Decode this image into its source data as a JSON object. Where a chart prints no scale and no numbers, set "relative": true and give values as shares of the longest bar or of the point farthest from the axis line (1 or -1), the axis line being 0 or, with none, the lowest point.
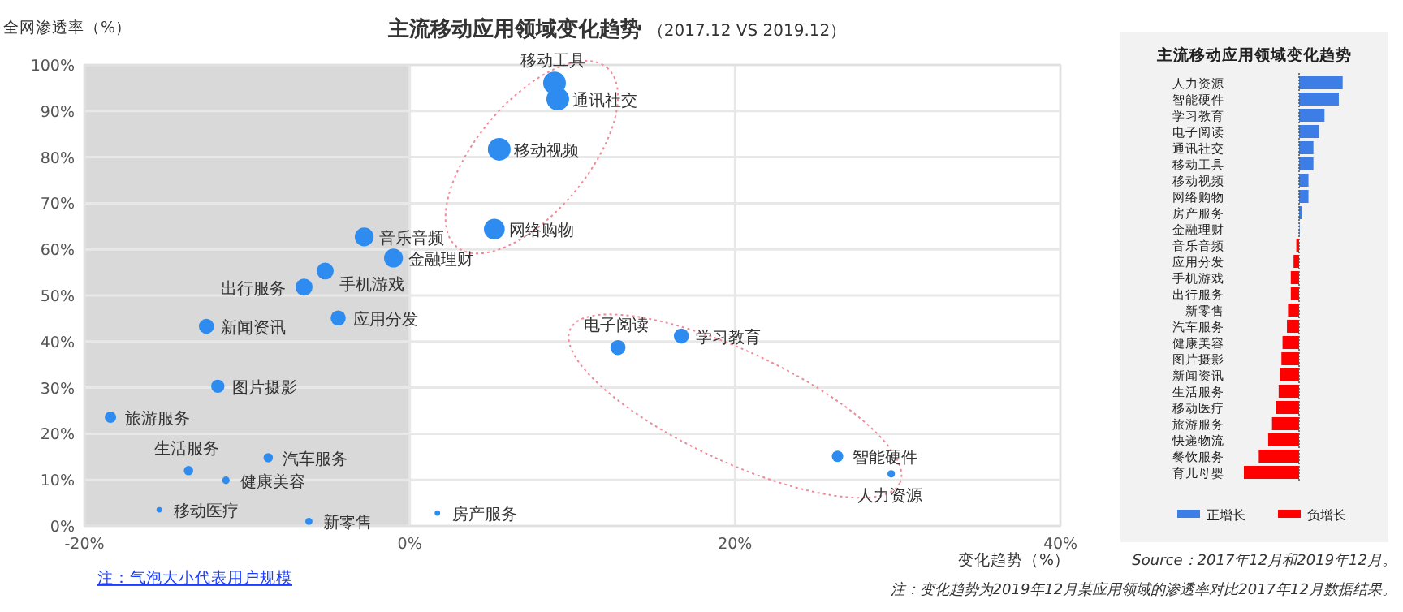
{
  "chart_data": [
    {
      "type": "bubble",
      "title": "主流移动应用领域变化趋势",
      "subtitle": "（2017.12 VS 2019.12）",
      "xlabel": "变化趋势（%）",
      "ylabel": "全网渗透率（%）",
      "xlim": [
        -20,
        40
      ],
      "xticks": [
        {
          "value": -20,
          "label": "-20%"
        },
        {
          "value": 0,
          "label": "0%"
        },
        {
          "value": 20,
          "label": "20%"
        },
        {
          "value": 40,
          "label": "40%"
        }
      ],
      "ylim": [
        0,
        100
      ],
      "yticks": [
        {
          "value": 0,
          "label": "0%"
        },
        {
          "value": 10,
          "label": "10%"
        },
        {
          "value": 20,
          "label": "20%"
        },
        {
          "value": 30,
          "label": "30%"
        },
        {
          "value": 40,
          "label": "40%"
        },
        {
          "value": 50,
          "label": "50%"
        },
        {
          "value": 60,
          "label": "60%"
        },
        {
          "value": 70,
          "label": "70%"
        },
        {
          "value": 80,
          "label": "80%"
        },
        {
          "value": 90,
          "label": "90%"
        },
        {
          "value": 100,
          "label": "100%"
        }
      ],
      "grid": true,
      "bands": [
        {
          "axis": "x",
          "from": -20,
          "to": 0,
          "color": "#d9d9d9"
        }
      ],
      "series": [
        {
          "color": "#2e8cf0",
          "x": [
            8.9,
            9.1,
            5.5,
            5.2,
            -2.8,
            -1.0,
            -5.2,
            -6.5,
            -4.4,
            -12.5,
            -11.8,
            -18.4,
            -13.6,
            -8.7,
            -11.3,
            -15.4,
            -6.2,
            1.7,
            16.7,
            12.8,
            26.3,
            29.6
          ],
          "values": [
            96.1,
            92.6,
            81.7,
            64.4,
            62.7,
            58.1,
            55.3,
            51.8,
            45.1,
            43.3,
            30.3,
            23.6,
            12.0,
            14.8,
            9.9,
            3.5,
            1.0,
            2.8,
            41.2,
            38.7,
            15.1,
            11.3
          ],
          "sizes": [
            1,
            1,
            1,
            0.84,
            0.69,
            0.69,
            0.56,
            0.56,
            0.44,
            0.44,
            0.34,
            0.25,
            0.17,
            0.17,
            0.11,
            0.06,
            0.1,
            0.06,
            0.44,
            0.44,
            0.25,
            0.11
          ]
        }
      ],
      "annotations": [
        {
          "text": "移动工具",
          "x": 8.9,
          "y": 96.1
        },
        {
          "text": "通讯社交",
          "x": 9.1,
          "y": 92.6
        },
        {
          "text": "移动视频",
          "x": 5.5,
          "y": 81.7
        },
        {
          "text": "网络购物",
          "x": 5.2,
          "y": 64.4
        },
        {
          "text": "音乐音频",
          "x": -2.8,
          "y": 62.7
        },
        {
          "text": "金融理财",
          "x": -1.0,
          "y": 58.1
        },
        {
          "text": "手机游戏",
          "x": -5.2,
          "y": 55.3
        },
        {
          "text": "出行服务",
          "x": -6.5,
          "y": 51.8
        },
        {
          "text": "应用分发",
          "x": -4.4,
          "y": 45.1
        },
        {
          "text": "新闻资讯",
          "x": -12.5,
          "y": 43.3
        },
        {
          "text": "图片摄影",
          "x": -11.8,
          "y": 30.3
        },
        {
          "text": "旅游服务",
          "x": -18.4,
          "y": 23.6
        },
        {
          "text": "生活服务",
          "x": -13.6,
          "y": 12.0
        },
        {
          "text": "汽车服务",
          "x": -8.7,
          "y": 14.8
        },
        {
          "text": "健康美容",
          "x": -11.3,
          "y": 9.9
        },
        {
          "text": "移动医疗",
          "x": -15.4,
          "y": 3.5
        },
        {
          "text": "新零售",
          "x": -6.2,
          "y": 1.0
        },
        {
          "text": "房产服务",
          "x": 1.7,
          "y": 2.8
        },
        {
          "text": "学习教育",
          "x": 16.7,
          "y": 41.2
        },
        {
          "text": "电子阅读",
          "x": 12.8,
          "y": 38.7
        },
        {
          "text": "智能硬件",
          "x": 26.3,
          "y": 15.1
        },
        {
          "text": "人力资源",
          "x": 29.6,
          "y": 11.3
        },
        "注：气泡大小代表用户规模",
        "Source：2017年12月和2019年12月。",
        "注：变化趋势为2019年12月某应用领域的渗透率对比2017年12月数据结果。"
      ]
    },
    {
      "type": "bar",
      "orientation": "horizontal",
      "relative": true,
      "title": "主流移动应用领域变化趋势",
      "legend": "bottom",
      "ref_lines": [
        {
          "axis": "x",
          "value": 0,
          "color": "#555555",
          "line_style": "dotted"
        }
      ],
      "categories": [
        "人力资源",
        "智能硬件",
        "学习教育",
        "电子阅读",
        "通讯社交",
        "移动工具",
        "移动视频",
        "网络购物",
        "房产服务",
        "金融理财",
        "音乐音频",
        "应用分发",
        "手机游戏",
        "出行服务",
        "新零售",
        "汽车服务",
        "健康美容",
        "图片摄影",
        "新闻资讯",
        "生活服务",
        "移动医疗",
        "旅游服务",
        "快递物流",
        "餐饮服务",
        "育儿母婴"
      ],
      "series": [
        {
          "name": "正增长",
          "color": "#3d7ee6",
          "values": [
            0.79,
            0.72,
            0.46,
            0.36,
            0.26,
            0.26,
            0.17,
            0.17,
            0.05,
            0.005,
            null,
            null,
            null,
            null,
            null,
            null,
            null,
            null,
            null,
            null,
            null,
            null,
            null,
            null,
            null
          ]
        },
        {
          "name": "负增长",
          "color": "#ff0000",
          "values": [
            null,
            null,
            null,
            null,
            null,
            null,
            null,
            null,
            null,
            null,
            -0.05,
            -0.1,
            -0.15,
            -0.15,
            -0.2,
            -0.22,
            -0.3,
            -0.32,
            -0.35,
            -0.37,
            -0.42,
            -0.49,
            -0.56,
            -0.73,
            -1
          ]
        }
      ]
    }
  ]
}
